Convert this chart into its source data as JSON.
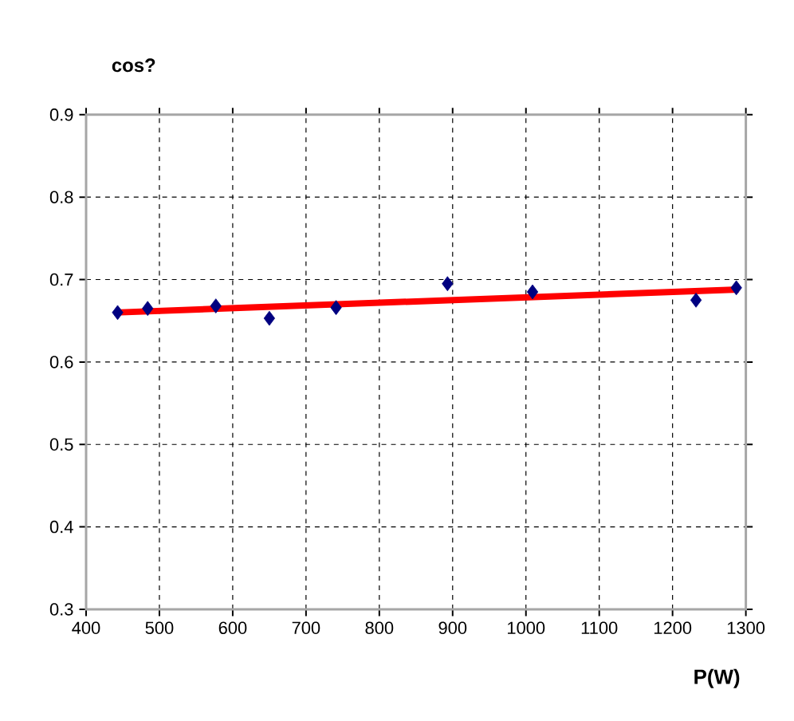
{
  "chart_data": {
    "type": "scatter",
    "ylabel": "cos?",
    "xlabel": "P(W)",
    "xlim": [
      400,
      1300
    ],
    "ylim": [
      0.3,
      0.9
    ],
    "xticks": [
      400,
      500,
      600,
      700,
      800,
      900,
      1000,
      1100,
      1200,
      1300
    ],
    "yticks": [
      0.3,
      0.4,
      0.5,
      0.6,
      0.7,
      0.8,
      0.9
    ],
    "grid": true,
    "series": [
      {
        "color": "#000080",
        "marker": "diamond",
        "x": [
          443,
          484,
          577,
          650,
          741,
          893,
          1009,
          1232,
          1287
        ],
        "values": [
          0.66,
          0.665,
          0.668,
          0.653,
          0.666,
          0.695,
          0.685,
          0.675,
          0.69
        ]
      },
      {
        "type": "line",
        "color": "#ff0000",
        "x": [
          440,
          1290
        ],
        "values": [
          0.66,
          0.688
        ],
        "line_style": "solid"
      }
    ]
  }
}
